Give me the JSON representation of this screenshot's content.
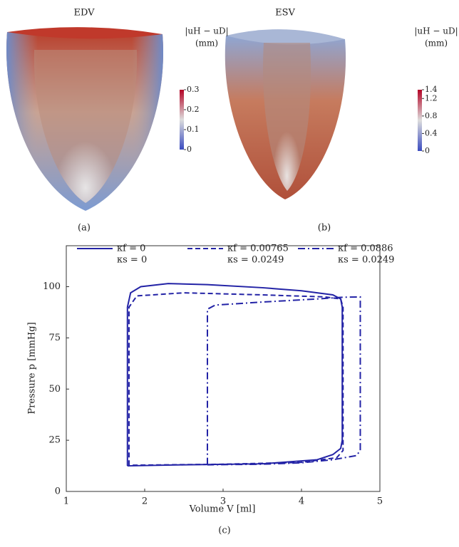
{
  "panels": [
    {
      "label": "EDV",
      "caption": "(a)",
      "colorbar": {
        "title": "|uH − uD|",
        "unit": "(mm)",
        "lim": [
          0,
          0.3
        ],
        "ticks": [
          0,
          0.1,
          0.2,
          0.3
        ]
      }
    },
    {
      "label": "ESV",
      "caption": "(b)",
      "colorbar": {
        "title": "|uH − uD|",
        "unit": "(mm)",
        "lim": [
          0,
          1.4
        ],
        "ticks": [
          0,
          0.4,
          0.8,
          1.2,
          1.4
        ]
      }
    }
  ],
  "chart_data": {
    "type": "line",
    "caption": "(c)",
    "xlabel": "Volume V [ml]",
    "ylabel": "Pressure p [mmHg]",
    "xlim": [
      1,
      5
    ],
    "xticks": [
      1,
      2,
      3,
      4,
      5
    ],
    "ylim": [
      0,
      120
    ],
    "yticks": [
      0,
      25,
      50,
      75,
      100
    ],
    "grid": false,
    "series": [
      {
        "name": [
          "κf = 0",
          "κs = 0"
        ],
        "color": "#2323a6",
        "linestyle": "solid",
        "x": [
          1.78,
          1.78,
          1.82,
          1.95,
          2.3,
          2.8,
          3.5,
          4.0,
          4.4,
          4.5,
          4.52,
          4.52,
          4.5,
          4.4,
          4.2,
          3.5,
          2.5,
          1.78
        ],
        "values": [
          12.5,
          90,
          97,
          100,
          101.5,
          101,
          99.5,
          98,
          96,
          94,
          90,
          25,
          21,
          18,
          15.5,
          13.5,
          13,
          12.5
        ]
      },
      {
        "name": [
          "κf = 0.00765",
          "κs = 0.0249"
        ],
        "color": "#2323a6",
        "linestyle": "dashed",
        "x": [
          1.8,
          1.8,
          1.9,
          2.5,
          3.5,
          4.3,
          4.5,
          4.53,
          4.53,
          4.45,
          4.0,
          3.0,
          1.8
        ],
        "values": [
          12.8,
          90,
          95.5,
          97,
          96,
          95,
          94,
          90,
          20,
          16.5,
          14.2,
          13.3,
          12.8
        ]
      },
      {
        "name": [
          "κf = 0.0886",
          "κs = 0.0249"
        ],
        "color": "#2323a6",
        "linestyle": "dashdot",
        "x": [
          2.8,
          2.8,
          2.9,
          3.5,
          4.2,
          4.5,
          4.75,
          4.75,
          4.7,
          4.4,
          4.0,
          3.5,
          2.8
        ],
        "values": [
          13,
          89,
          91,
          92.5,
          94,
          94.8,
          95,
          20,
          17.5,
          15.5,
          14,
          13.3,
          13
        ]
      }
    ]
  }
}
